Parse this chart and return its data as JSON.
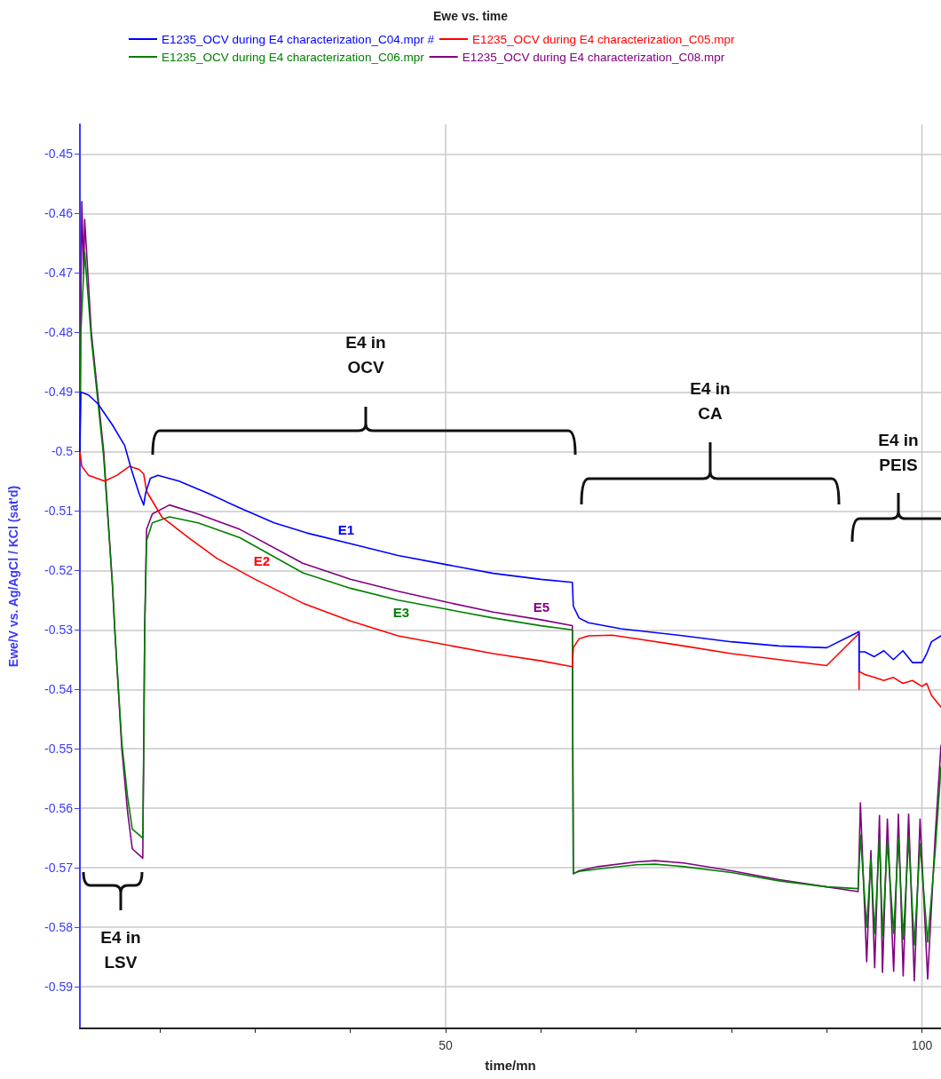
{
  "chart_data": {
    "type": "line",
    "title": "Ewe vs. time",
    "xlabel": "time/mn",
    "ylabel": "Ewe/V vs. Ag/AgCl / KCl (sat'd)",
    "xlim": [
      11.6,
      102
    ],
    "ylim": [
      -0.597,
      -0.445
    ],
    "xticks": [
      {
        "value": 20,
        "label": null
      },
      {
        "value": 30,
        "label": null
      },
      {
        "value": 40,
        "label": null
      },
      50,
      {
        "value": 60,
        "label": null
      },
      {
        "value": 70,
        "label": null
      },
      {
        "value": 80,
        "label": null
      },
      {
        "value": 90,
        "label": null
      },
      100
    ],
    "yticks": [
      -0.45,
      -0.46,
      -0.47,
      -0.48,
      -0.49,
      -0.5,
      -0.51,
      -0.52,
      -0.53,
      -0.54,
      -0.55,
      -0.56,
      -0.57,
      -0.58,
      -0.59
    ],
    "grid": true,
    "legend": "top",
    "marker": "none",
    "line_style": "solid",
    "series": [
      {
        "name": "E1235_OCV during E4 characterization_C04.mpr #",
        "color": "#0000ff",
        "x": [
          11.6,
          11.7,
          12.5,
          13.5,
          15,
          16.3,
          17,
          17.8,
          18.3,
          18.5,
          19,
          19.8,
          22,
          25,
          28.4,
          32,
          35.4,
          40.5,
          45,
          50,
          55,
          60,
          63.3,
          63.4,
          64,
          65,
          68.4,
          75,
          80,
          85,
          90,
          93.4,
          93.4,
          93.4,
          94,
          95,
          96,
          97,
          98,
          99,
          100,
          100.5,
          101,
          102
        ],
        "values": [
          -0.5,
          -0.49,
          -0.4905,
          -0.492,
          -0.4955,
          -0.499,
          -0.503,
          -0.507,
          -0.509,
          -0.507,
          -0.5045,
          -0.504,
          -0.505,
          -0.507,
          -0.5095,
          -0.512,
          -0.5137,
          -0.5157,
          -0.5175,
          -0.519,
          -0.5205,
          -0.5215,
          -0.522,
          -0.526,
          -0.528,
          -0.5288,
          -0.5298,
          -0.531,
          -0.532,
          -0.5327,
          -0.533,
          -0.5303,
          -0.537,
          -0.5337,
          -0.5337,
          -0.5345,
          -0.5335,
          -0.535,
          -0.5335,
          -0.5355,
          -0.5355,
          -0.534,
          -0.532,
          -0.531
        ]
      },
      {
        "name": "E1235_OCV during E4 characterization_C05.mpr",
        "color": "#ff0000",
        "x": [
          11.6,
          11.8,
          12.5,
          14.2,
          15.5,
          16.8,
          17.8,
          18.3,
          18.6,
          20.2,
          23,
          26,
          30,
          35,
          40,
          45,
          50,
          55,
          60,
          63.3,
          63.4,
          64,
          65,
          67.5,
          70,
          75,
          80,
          85,
          90,
          93.4,
          93.4,
          93.4,
          94,
          95,
          96,
          97,
          98,
          99,
          100,
          100.5,
          101,
          102
        ],
        "values": [
          -0.5,
          -0.5025,
          -0.504,
          -0.505,
          -0.504,
          -0.5025,
          -0.503,
          -0.5038,
          -0.5067,
          -0.511,
          -0.5145,
          -0.518,
          -0.5215,
          -0.5255,
          -0.5285,
          -0.531,
          -0.5325,
          -0.534,
          -0.5352,
          -0.5362,
          -0.533,
          -0.5315,
          -0.531,
          -0.5309,
          -0.5315,
          -0.5327,
          -0.534,
          -0.535,
          -0.536,
          -0.5306,
          -0.54,
          -0.537,
          -0.5375,
          -0.538,
          -0.5385,
          -0.538,
          -0.539,
          -0.5385,
          -0.5395,
          -0.539,
          -0.541,
          -0.543
        ]
      },
      {
        "name": "E1235_OCV during E4 characterization_C06.mpr",
        "color": "#008000",
        "x": [
          11.6,
          11.7,
          12.1,
          12.8,
          14.1,
          15,
          15.3,
          16,
          16.6,
          17.1,
          18.2,
          18.3,
          18.4,
          18.6,
          19.2,
          21,
          24,
          28.4,
          35,
          40,
          45,
          50,
          55,
          60,
          63.3,
          63.4,
          64,
          66,
          70,
          72,
          75,
          80,
          85,
          90,
          93.3,
          93.54,
          94.2,
          94.64,
          95.04,
          95.54,
          95.86,
          96.37,
          97.03,
          97.53,
          98.03,
          98.6,
          99.2,
          99.8,
          100.6,
          101.4,
          102
        ],
        "values": [
          -0.5,
          -0.48,
          -0.4665,
          -0.481,
          -0.501,
          -0.522,
          -0.531,
          -0.549,
          -0.558,
          -0.5635,
          -0.565,
          -0.55,
          -0.53,
          -0.515,
          -0.512,
          -0.511,
          -0.512,
          -0.5145,
          -0.5204,
          -0.523,
          -0.525,
          -0.5265,
          -0.528,
          -0.5293,
          -0.53,
          -0.571,
          -0.5706,
          -0.5702,
          -0.5695,
          -0.5694,
          -0.5698,
          -0.5708,
          -0.5722,
          -0.5732,
          -0.5735,
          -0.5645,
          -0.58,
          -0.5685,
          -0.581,
          -0.565,
          -0.5815,
          -0.5655,
          -0.581,
          -0.565,
          -0.582,
          -0.565,
          -0.583,
          -0.566,
          -0.5825,
          -0.567,
          -0.553
        ]
      },
      {
        "name": "E1235_OCV during E4 characterization_C08.mpr",
        "color": "#800080",
        "x": [
          11.6,
          11.7,
          11.8,
          12,
          12.1,
          12.8,
          14.1,
          15,
          15.3,
          16,
          16.6,
          17.1,
          18.2,
          18.3,
          18.4,
          18.6,
          19.2,
          21,
          24,
          28.4,
          35,
          40,
          45,
          50,
          55,
          60,
          63.3,
          63.4,
          64,
          66,
          70,
          72,
          75,
          80,
          85,
          90,
          93.3,
          93.54,
          94.2,
          94.64,
          95.04,
          95.54,
          95.86,
          96.37,
          97.03,
          97.53,
          98.03,
          98.6,
          99.2,
          99.8,
          100.6,
          101.4,
          102
        ],
        "values": [
          -0.5,
          -0.475,
          -0.458,
          -0.47,
          -0.461,
          -0.48,
          -0.5,
          -0.522,
          -0.531,
          -0.55,
          -0.5605,
          -0.5668,
          -0.5684,
          -0.55,
          -0.53,
          -0.5131,
          -0.5105,
          -0.509,
          -0.5105,
          -0.5131,
          -0.5188,
          -0.5215,
          -0.5235,
          -0.5253,
          -0.527,
          -0.5283,
          -0.5293,
          -0.571,
          -0.5705,
          -0.5698,
          -0.569,
          -0.5688,
          -0.5692,
          -0.5705,
          -0.572,
          -0.5732,
          -0.574,
          -0.5591,
          -0.5858,
          -0.5671,
          -0.5868,
          -0.5612,
          -0.5876,
          -0.5618,
          -0.5874,
          -0.561,
          -0.5882,
          -0.561,
          -0.589,
          -0.5618,
          -0.5887,
          -0.5644,
          -0.5494
        ]
      }
    ],
    "annotations": [
      "E1",
      "E2",
      "E3",
      "E5",
      "E4 in\nOCV",
      "E4 in\nCA",
      "E4 in\nPEIS",
      "E4 in\nLSV"
    ]
  }
}
